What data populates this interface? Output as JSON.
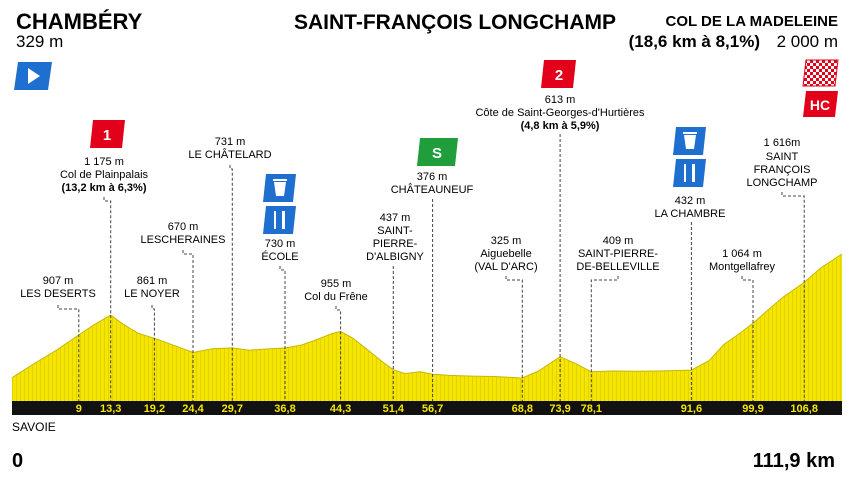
{
  "start": {
    "name": "CHAMBÉRY",
    "altitude": "329 m"
  },
  "finish": {
    "name": "SAINT-FRANÇOIS LONGCHAMP",
    "climb_name": "COL DE LA MADELEINE",
    "climb_detail": "(18,6 km à 8,1%)",
    "altitude": "2 000 m"
  },
  "region": "SAVOIE",
  "distance_start": "0",
  "distance_end": "111,9 km",
  "colors": {
    "profile_fill": "#f5e500",
    "profile_hatch": "#d9c900",
    "baseline": "#111111",
    "start_flag": "#1f6fd1",
    "climb_badge": "#e3001b",
    "sprint_badge": "#1f9e3b",
    "service_badge": "#1f6fd1"
  },
  "badges": {
    "climb_1": "1",
    "climb_2": "2",
    "sprint": "S",
    "hc": "HC",
    "feed_icon": "fork-knife-icon",
    "water_icon": "water-icon",
    "start_icon": "start-flag-icon",
    "finish_icon": "checkered-flag-icon"
  },
  "chart_data": {
    "type": "area",
    "xlim": [
      0,
      111.9
    ],
    "profile_km": [
      0,
      3,
      6,
      9,
      11,
      13.3,
      15,
      17,
      19.2,
      22,
      24.4,
      27,
      29.7,
      32,
      34,
      36.8,
      39,
      41,
      43,
      44.3,
      46,
      48,
      50,
      51.4,
      53,
      55,
      56.7,
      59,
      62,
      65,
      68.8,
      71,
      73.9,
      76,
      78.1,
      81,
      84,
      87,
      89,
      91.6,
      94,
      96,
      98,
      99.9,
      102,
      104,
      106.8,
      109,
      111.9
    ],
    "profile_m": [
      329,
      520,
      700,
      907,
      1040,
      1175,
      1050,
      930,
      861,
      760,
      670,
      720,
      731,
      700,
      715,
      730,
      770,
      840,
      920,
      955,
      860,
      700,
      540,
      437,
      385,
      410,
      376,
      360,
      350,
      345,
      325,
      420,
      613,
      520,
      409,
      420,
      415,
      420,
      425,
      432,
      560,
      780,
      920,
      1064,
      1250,
      1420,
      1616,
      1810,
      2000
    ],
    "markers": [
      {
        "km": "9",
        "name": "LES DESERTS",
        "alt": "907 m"
      },
      {
        "km": "13,3",
        "name": "Col de Plainpalais",
        "alt": "1 175 m",
        "detail": "(13,2 km à 6,3%)"
      },
      {
        "km": "19,2",
        "name": "LE NOYER",
        "alt": "861 m"
      },
      {
        "km": "24,4",
        "name": "LESCHERAINES",
        "alt": "670 m"
      },
      {
        "km": "29,7",
        "name": "LE CHÂTELARD",
        "alt": "731 m"
      },
      {
        "km": "36,8",
        "name": "ÉCOLE",
        "alt": "730 m"
      },
      {
        "km": "44,3",
        "name": "Col du Frêne",
        "alt": "955 m"
      },
      {
        "km": "51,4",
        "name": "SAINT-PIERRE-D'ALBIGNY",
        "alt": "437 m"
      },
      {
        "km": "56,7",
        "name": "CHÂTEAUNEUF",
        "alt": "376 m"
      },
      {
        "km": "68,8",
        "name": "Aiguebelle (VAL D'ARC)",
        "alt": "325 m"
      },
      {
        "km": "73,9",
        "name": "Côte de Saint-Georges-d'Hurtières",
        "alt": "613 m",
        "detail": "(4,8 km à 5,9%)"
      },
      {
        "km": "78,1",
        "name": "SAINT-PIERRE-DE-BELLEVILLE",
        "alt": "409 m"
      },
      {
        "km": "91,6",
        "name": "LA CHAMBRE",
        "alt": "432 m"
      },
      {
        "km": "99,9",
        "name": "Montgellafrey",
        "alt": "1 064 m"
      },
      {
        "km": "106,8",
        "name": "SAINT FRANÇOIS LONGCHAMP",
        "alt": "1 616m"
      }
    ],
    "labels": {
      "m0_name": "LES DESERTS",
      "m1_name": "Col de Plainpalais",
      "m2_name": "LE NOYER",
      "m3_name": "LESCHERAINES",
      "m4_name": "LE CHÂTELARD",
      "m5_name": "ÉCOLE",
      "m6_name": "Col du Frêne",
      "m7_line1": "SAINT-",
      "m7_line2": "PIERRE-",
      "m7_line3": "D'ALBIGNY",
      "m8_name": "CHÂTEAUNEUF",
      "m9_line1": "Aiguebelle",
      "m9_line2": "(VAL D'ARC)",
      "m10_name": "Côte de Saint-Georges-d'Hurtières",
      "m11_line1": "SAINT-PIERRE-",
      "m11_line2": "DE-BELLEVILLE",
      "m12_name": "LA CHAMBRE",
      "m13_name": "Montgellafrey",
      "m14_line1": "SAINT",
      "m14_line2": "FRANÇOIS",
      "m14_line3": "LONGCHAMP"
    }
  }
}
